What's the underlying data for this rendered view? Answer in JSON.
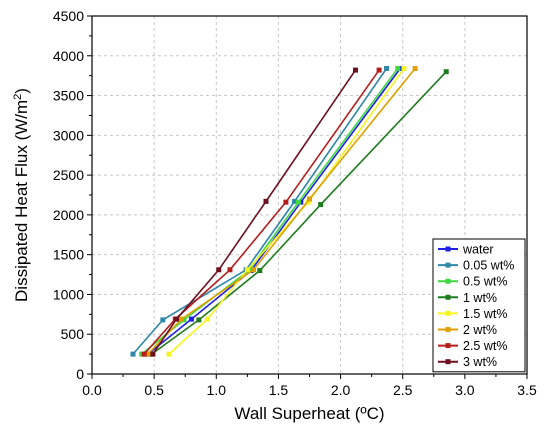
{
  "chart_data": {
    "type": "line",
    "title": "",
    "xlabel": "Wall Superheat (ºC)",
    "ylabel_main": "Dissipated Heat Flux (W/m",
    "ylabel_sup": "2",
    "ylabel_end": ")",
    "xlim": [
      0,
      3.5
    ],
    "ylim": [
      0,
      4500
    ],
    "xticks": [
      0.0,
      0.5,
      1.0,
      1.5,
      2.0,
      2.5,
      3.0,
      3.5
    ],
    "xtick_labels": [
      "0.0",
      "0.5",
      "1.0",
      "1.5",
      "2.0",
      "2.5",
      "3.0",
      "3.5"
    ],
    "yticks": [
      0,
      500,
      1000,
      1500,
      2000,
      2500,
      3000,
      3500,
      4000,
      4500
    ],
    "ytick_labels": [
      "0",
      "500",
      "1000",
      "1500",
      "2000",
      "2500",
      "3000",
      "3500",
      "4000",
      "4500"
    ],
    "grid": true,
    "legend_position": "bottom-right",
    "series": [
      {
        "name": "water",
        "color": "#1f1fe6",
        "x": [
          0.45,
          0.8,
          1.28,
          1.68,
          2.48
        ],
        "y": [
          250,
          690,
          1300,
          2160,
          3840
        ]
      },
      {
        "name": "0.05 wt%",
        "color": "#2e86a8",
        "x": [
          0.33,
          0.57,
          1.24,
          1.63,
          2.37
        ],
        "y": [
          250,
          680,
          1310,
          2170,
          3840
        ]
      },
      {
        "name": "0.5 wt%",
        "color": "#3fd93f",
        "x": [
          0.4,
          0.74,
          1.26,
          1.66,
          2.46
        ],
        "y": [
          250,
          680,
          1300,
          2160,
          3840
        ]
      },
      {
        "name": "1 wt%",
        "color": "#1e7d1e",
        "x": [
          0.48,
          0.86,
          1.35,
          1.84,
          2.85
        ],
        "y": [
          250,
          680,
          1300,
          2130,
          3800
        ]
      },
      {
        "name": "1.5 wt%",
        "color": "#f5f51e",
        "x": [
          0.62,
          0.93,
          1.25,
          1.74,
          2.51
        ],
        "y": [
          250,
          690,
          1310,
          2160,
          3840
        ]
      },
      {
        "name": "2 wt%",
        "color": "#e0a000",
        "x": [
          0.45,
          0.72,
          1.3,
          1.75,
          2.6
        ],
        "y": [
          250,
          690,
          1310,
          2200,
          3840
        ]
      },
      {
        "name": "2.5 wt%",
        "color": "#b71c1c",
        "x": [
          0.42,
          0.67,
          1.11,
          1.56,
          2.31
        ],
        "y": [
          250,
          690,
          1310,
          2160,
          3820
        ]
      },
      {
        "name": "3 wt%",
        "color": "#6d0f1e",
        "x": [
          0.49,
          0.68,
          1.02,
          1.4,
          2.12
        ],
        "y": [
          250,
          690,
          1310,
          2170,
          3820
        ]
      }
    ]
  }
}
